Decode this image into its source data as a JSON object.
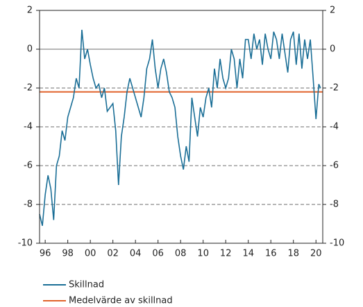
{
  "chart_data": {
    "type": "line",
    "xlim": [
      1995.5,
      2020.6
    ],
    "xticks": [
      {
        "value": 1996,
        "label": "96"
      },
      {
        "value": 1998,
        "label": "98"
      },
      {
        "value": 2000,
        "label": "00"
      },
      {
        "value": 2002,
        "label": "02"
      },
      {
        "value": 2004,
        "label": "04"
      },
      {
        "value": 2006,
        "label": "06"
      },
      {
        "value": 2008,
        "label": "08"
      },
      {
        "value": 2010,
        "label": "10"
      },
      {
        "value": 2012,
        "label": "12"
      },
      {
        "value": 2014,
        "label": "14"
      },
      {
        "value": 2016,
        "label": "16"
      },
      {
        "value": 2018,
        "label": "18"
      },
      {
        "value": 2020,
        "label": "20"
      }
    ],
    "ylim": [
      -10,
      2
    ],
    "yticks": [
      -10,
      -8,
      -6,
      -4,
      -2,
      0,
      2
    ],
    "grid": true,
    "series": [
      {
        "name": "Skillnad",
        "color": "#1a6e96",
        "x": [
          1995.5,
          1995.75,
          1996,
          1996.25,
          1996.5,
          1996.75,
          1997,
          1997.25,
          1997.5,
          1997.75,
          1998,
          1998.25,
          1998.5,
          1998.75,
          1999,
          1999.25,
          1999.5,
          1999.75,
          2000,
          2000.25,
          2000.5,
          2000.75,
          2001,
          2001.25,
          2001.5,
          2001.75,
          2002,
          2002.25,
          2002.5,
          2002.75,
          2003,
          2003.25,
          2003.5,
          2003.75,
          2004,
          2004.25,
          2004.5,
          2004.75,
          2005,
          2005.25,
          2005.5,
          2005.75,
          2006,
          2006.25,
          2006.5,
          2006.75,
          2007,
          2007.25,
          2007.5,
          2007.75,
          2008,
          2008.25,
          2008.5,
          2008.75,
          2009,
          2009.25,
          2009.5,
          2009.75,
          2010,
          2010.25,
          2010.5,
          2010.75,
          2011,
          2011.25,
          2011.5,
          2011.75,
          2012,
          2012.25,
          2012.5,
          2012.75,
          2013,
          2013.25,
          2013.5,
          2013.75,
          2014,
          2014.25,
          2014.5,
          2014.75,
          2015,
          2015.25,
          2015.5,
          2015.75,
          2016,
          2016.25,
          2016.5,
          2016.75,
          2017,
          2017.25,
          2017.5,
          2017.75,
          2018,
          2018.25,
          2018.5,
          2018.75,
          2019,
          2019.25,
          2019.5,
          2019.75,
          2020,
          2020.25,
          2020.4
        ],
        "values": [
          -8.5,
          -9.1,
          -7.5,
          -6.5,
          -7.2,
          -8.8,
          -6.0,
          -5.5,
          -4.2,
          -4.7,
          -3.5,
          -3.0,
          -2.5,
          -1.5,
          -2.0,
          1.0,
          -0.5,
          0.0,
          -0.8,
          -1.5,
          -2.0,
          -1.8,
          -2.5,
          -2.0,
          -3.2,
          -3.0,
          -2.8,
          -4.2,
          -7.0,
          -4.5,
          -3.5,
          -2.2,
          -1.5,
          -2.0,
          -2.5,
          -3.0,
          -3.5,
          -2.5,
          -1.0,
          -0.5,
          0.5,
          -1.0,
          -2.0,
          -1.0,
          -0.5,
          -1.2,
          -2.2,
          -2.5,
          -3.0,
          -4.5,
          -5.5,
          -6.2,
          -5.0,
          -5.8,
          -2.5,
          -3.5,
          -4.5,
          -3.0,
          -3.5,
          -2.5,
          -2.0,
          -3.0,
          -1.0,
          -2.0,
          -0.5,
          -1.5,
          -2.0,
          -1.5,
          0.0,
          -0.5,
          -2.0,
          -0.5,
          -1.5,
          0.5,
          0.5,
          -0.5,
          0.8,
          0.0,
          0.5,
          -0.8,
          0.8,
          0.0,
          -0.5,
          0.9,
          0.5,
          -0.5,
          0.8,
          -0.2,
          -1.2,
          0.5,
          0.9,
          -0.8,
          0.8,
          -1.0,
          0.5,
          -0.5,
          0.5,
          -1.5,
          -3.6,
          -1.8,
          -2.0
        ]
      },
      {
        "name": "Medelvärde av skillnad",
        "color": "#e0622a",
        "x": [
          1995.5,
          2020.6
        ],
        "values": [
          -2.2,
          -2.2
        ]
      }
    ]
  }
}
